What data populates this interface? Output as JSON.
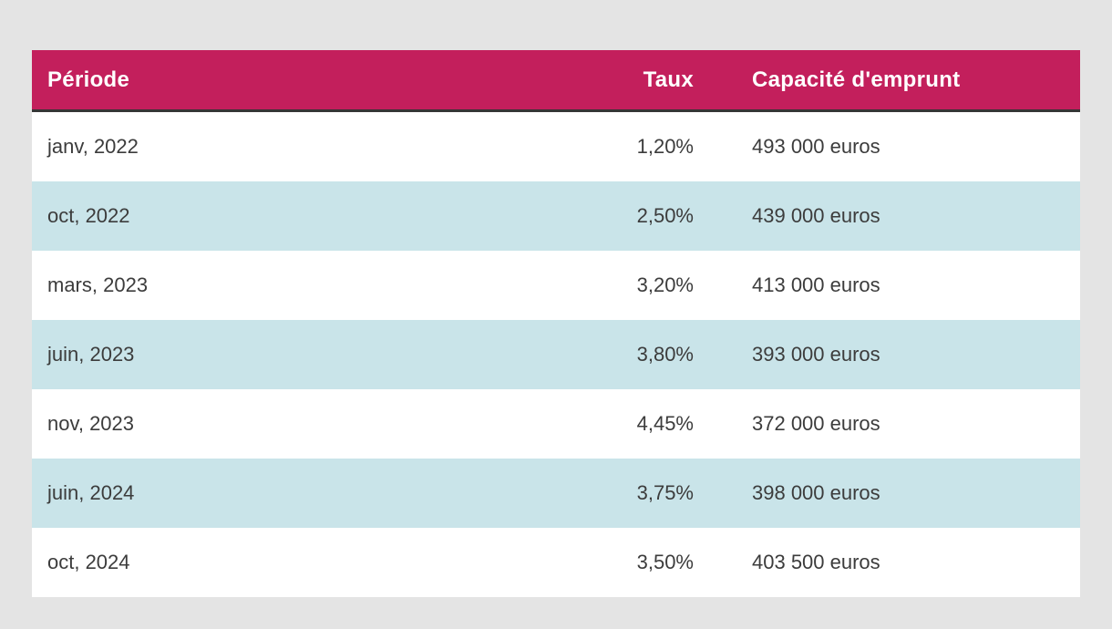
{
  "colors": {
    "page_bg": "#e4e4e4",
    "header_bg": "#c31f5c",
    "header_border": "#363636",
    "row_alt_bg": "#c9e4e9",
    "text_color": "#3c3c3c",
    "header_text": "#ffffff"
  },
  "chart_data": {
    "type": "table",
    "columns": [
      "Période",
      "Taux",
      "Capacité d'emprunt"
    ],
    "rows": [
      [
        "janv, 2022",
        "1,20%",
        "493 000 euros"
      ],
      [
        "oct, 2022",
        "2,50%",
        "439 000 euros"
      ],
      [
        "mars, 2023",
        "3,20%",
        "413 000 euros"
      ],
      [
        "juin, 2023",
        "3,80%",
        "393 000 euros"
      ],
      [
        "nov, 2023",
        "4,45%",
        "372 000 euros"
      ],
      [
        "juin, 2024",
        "3,75%",
        "398 000 euros"
      ],
      [
        "oct, 2024",
        "3,50%",
        "403 500 euros"
      ]
    ]
  }
}
